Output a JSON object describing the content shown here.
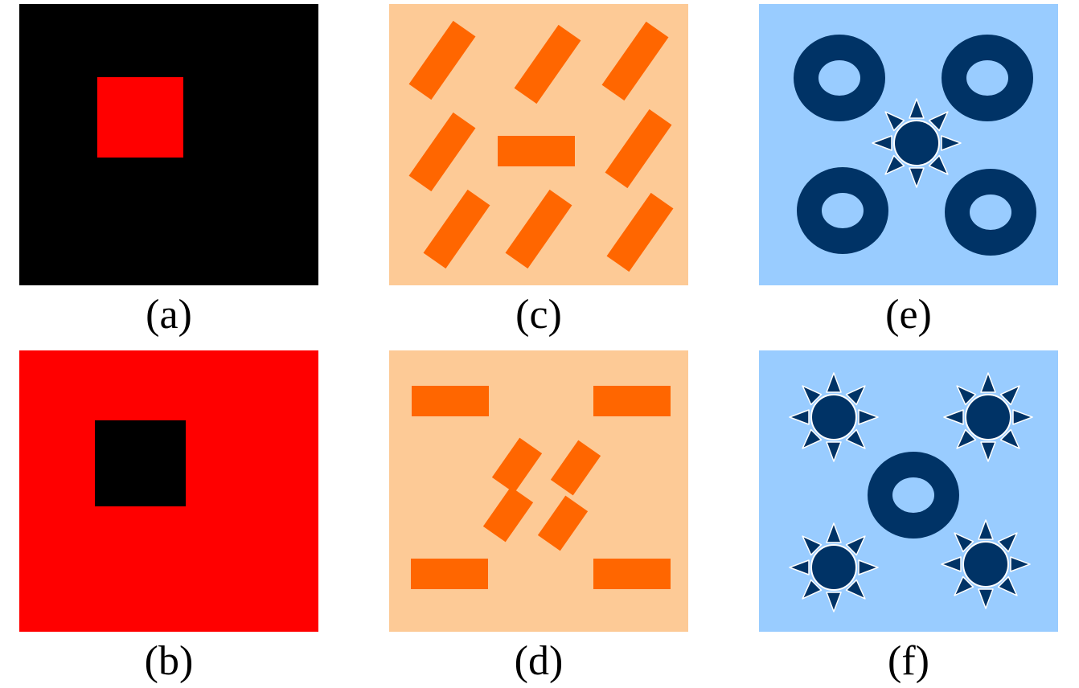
{
  "panels": {
    "a": {
      "label": "(a)",
      "background": "#000000",
      "shape_color": "#ff0000"
    },
    "b": {
      "label": "(b)",
      "background": "#ff0000",
      "shape_color": "#000000"
    },
    "c": {
      "label": "(c)",
      "background": "#fdca96",
      "shape_color": "#ff6600"
    },
    "d": {
      "label": "(d)",
      "background": "#fdca96",
      "shape_color": "#ff6600"
    },
    "e": {
      "label": "(e)",
      "background": "#99ccff",
      "shape_color": "#003366"
    },
    "f": {
      "label": "(f)",
      "background": "#99ccff",
      "shape_color": "#003366"
    }
  }
}
